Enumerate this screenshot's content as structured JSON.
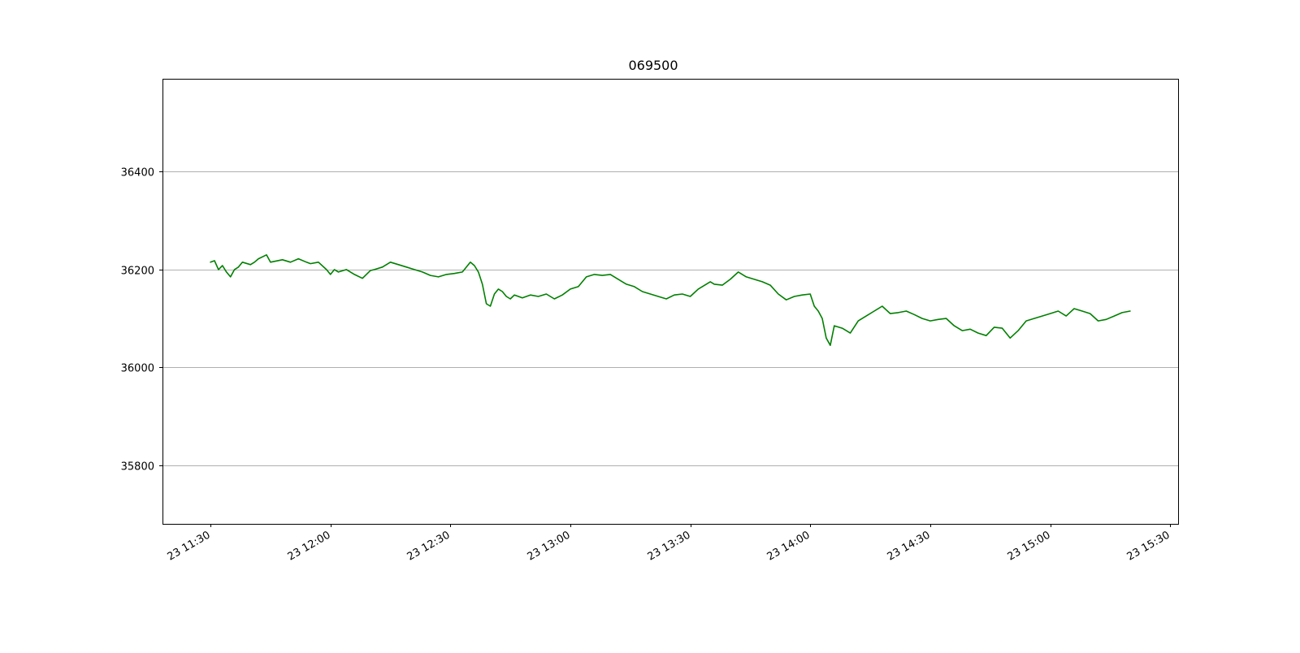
{
  "chart_data": {
    "type": "line",
    "title": "069500",
    "xlabel": "",
    "ylabel": "",
    "x_axis_type": "time",
    "xlim": [
      "23 11:18",
      "23 15:32"
    ],
    "ylim": [
      35680,
      36590
    ],
    "y_ticks": [
      35800,
      36000,
      36200,
      36400
    ],
    "x_ticks": [
      "23 11:30",
      "23 12:00",
      "23 12:30",
      "23 13:00",
      "23 13:30",
      "23 14:00",
      "23 14:30",
      "23 15:00",
      "23 15:30"
    ],
    "grid": "horizontal",
    "legend": "none",
    "series": [
      {
        "color": "#008000",
        "x": [
          "23 11:30",
          "23 11:31",
          "23 11:32",
          "23 11:33",
          "23 11:34",
          "23 11:35",
          "23 11:36",
          "23 11:37",
          "23 11:38",
          "23 11:40",
          "23 11:41",
          "23 11:42",
          "23 11:44",
          "23 11:45",
          "23 11:48",
          "23 11:50",
          "23 11:52",
          "23 11:54",
          "23 11:55",
          "23 11:57",
          "23 11:59",
          "23 12:00",
          "23 12:01",
          "23 12:02",
          "23 12:04",
          "23 12:06",
          "23 12:08",
          "23 12:10",
          "23 12:11",
          "23 12:13",
          "23 12:15",
          "23 12:17",
          "23 12:19",
          "23 12:21",
          "23 12:23",
          "23 12:25",
          "23 12:27",
          "23 12:29",
          "23 12:31",
          "23 12:33",
          "23 12:35",
          "23 12:36",
          "23 12:37",
          "23 12:38",
          "23 12:39",
          "23 12:40",
          "23 12:41",
          "23 12:42",
          "23 12:43",
          "23 12:44",
          "23 12:45",
          "23 12:46",
          "23 12:48",
          "23 12:50",
          "23 12:52",
          "23 12:54",
          "23 12:56",
          "23 12:58",
          "23 13:00",
          "23 13:02",
          "23 13:04",
          "23 13:06",
          "23 13:08",
          "23 13:10",
          "23 13:12",
          "23 13:14",
          "23 13:16",
          "23 13:18",
          "23 13:20",
          "23 13:22",
          "23 13:24",
          "23 13:26",
          "23 13:28",
          "23 13:30",
          "23 13:32",
          "23 13:34",
          "23 13:35",
          "23 13:36",
          "23 13:38",
          "23 13:40",
          "23 13:42",
          "23 13:44",
          "23 13:46",
          "23 13:48",
          "23 13:50",
          "23 13:52",
          "23 13:54",
          "23 13:56",
          "23 13:58",
          "23 14:00",
          "23 14:01",
          "23 14:02",
          "23 14:03",
          "23 14:04",
          "23 14:05",
          "23 14:06",
          "23 14:08",
          "23 14:10",
          "23 14:12",
          "23 14:14",
          "23 14:16",
          "23 14:18",
          "23 14:20",
          "23 14:22",
          "23 14:24",
          "23 14:26",
          "23 14:28",
          "23 14:30",
          "23 14:32",
          "23 14:34",
          "23 14:36",
          "23 14:38",
          "23 14:40",
          "23 14:42",
          "23 14:44",
          "23 14:46",
          "23 14:48",
          "23 14:50",
          "23 14:52",
          "23 14:54",
          "23 14:56",
          "23 14:58",
          "23 15:00",
          "23 15:02",
          "23 15:04",
          "23 15:06",
          "23 15:08",
          "23 15:10",
          "23 15:12",
          "23 15:14",
          "23 15:16",
          "23 15:18",
          "23 15:20"
        ],
        "values": [
          36215,
          36218,
          36200,
          36208,
          36195,
          36185,
          36200,
          36205,
          36215,
          36210,
          36215,
          36222,
          36230,
          36215,
          36220,
          36215,
          36222,
          36215,
          36212,
          36215,
          36200,
          36190,
          36200,
          36195,
          36200,
          36190,
          36182,
          36198,
          36200,
          36205,
          36215,
          36210,
          36205,
          36200,
          36195,
          36188,
          36185,
          36190,
          36192,
          36195,
          36215,
          36208,
          36195,
          36170,
          36130,
          36125,
          36150,
          36160,
          36155,
          36145,
          36140,
          36148,
          36142,
          36148,
          36145,
          36150,
          36140,
          36148,
          36160,
          36165,
          36185,
          36190,
          36188,
          36190,
          36180,
          36170,
          36165,
          36155,
          36150,
          36145,
          36140,
          36148,
          36150,
          36145,
          36160,
          36170,
          36175,
          36170,
          36168,
          36180,
          36195,
          36185,
          36180,
          36175,
          36168,
          36150,
          36138,
          36145,
          36148,
          36150,
          36125,
          36115,
          36100,
          36060,
          36045,
          36085,
          36080,
          36070,
          36095,
          36105,
          36115,
          36125,
          36110,
          36112,
          36115,
          36108,
          36100,
          36095,
          36098,
          36100,
          36085,
          36075,
          36078,
          36070,
          36065,
          36082,
          36080,
          36060,
          36075,
          36095,
          36100,
          36105,
          36110,
          36115,
          36105,
          36120,
          36115,
          36110,
          36095,
          36098,
          36105,
          36112,
          36115
        ]
      }
    ]
  }
}
